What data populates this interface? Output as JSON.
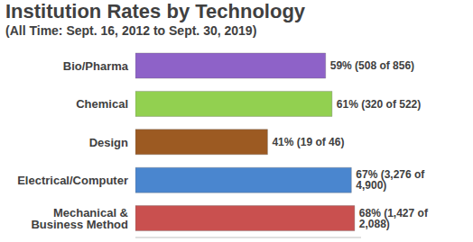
{
  "chart_data": {
    "type": "bar",
    "title": "Institution Rates by Technology",
    "subtitle": "(All Time: Sept. 16, 2012 to Sept. 30, 2019)",
    "orientation": "horizontal",
    "categories": [
      "Bio/Pharma",
      "Chemical",
      "Design",
      "Electrical/Computer",
      "Mechanical & Business Method"
    ],
    "values": [
      59,
      61,
      41,
      67,
      68
    ],
    "value_labels": [
      "59% (508 of 856)",
      "61% (320 of 522)",
      "41% (19 of 46)",
      "67% (3,276 of 4,900)",
      "68% (1,427 of 2,088)"
    ],
    "colors": [
      "#8e62c8",
      "#92d050",
      "#9c5a22",
      "#4a86cf",
      "#c9504f"
    ],
    "xlim": [
      0,
      70
    ],
    "data_labels": true,
    "tick_labels": "y",
    "grid": false
  }
}
